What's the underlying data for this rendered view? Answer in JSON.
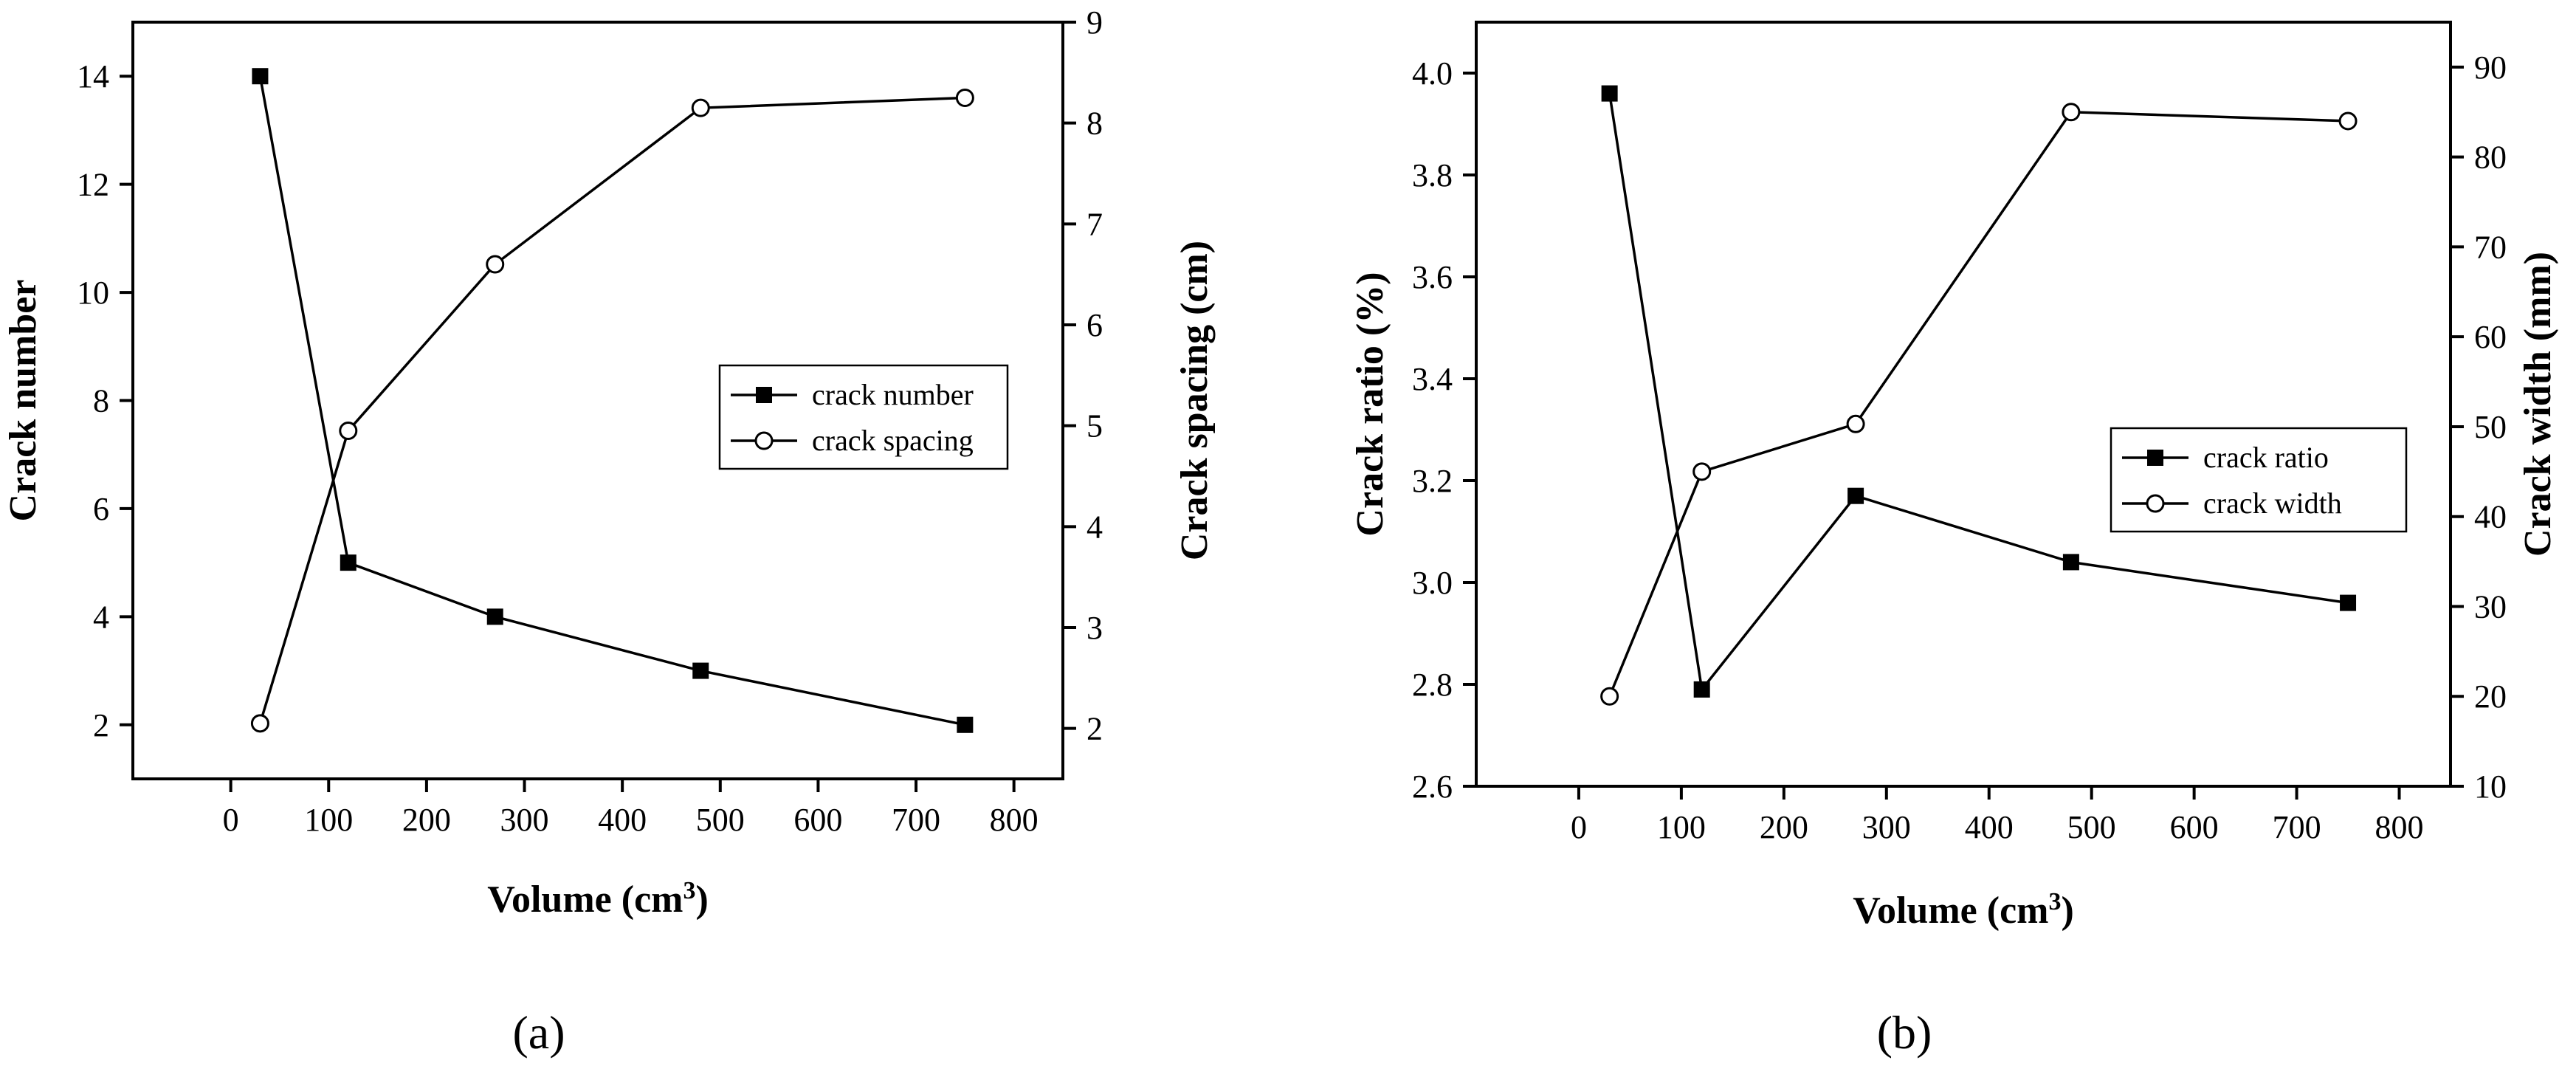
{
  "chart_data": [
    {
      "type": "line",
      "panel_label": "(a)",
      "xlabel": "Volume (cm",
      "xlabel_sup": "3",
      "xlabel_suffix": ")",
      "xlim": [
        -100,
        850
      ],
      "xticks": [
        0,
        100,
        200,
        300,
        400,
        500,
        600,
        700,
        800
      ],
      "x": [
        30,
        120,
        270,
        480,
        750
      ],
      "left_axis": {
        "label": "Crack number",
        "ylim": [
          1,
          15
        ],
        "ticks": [
          2,
          4,
          6,
          8,
          10,
          12,
          14
        ]
      },
      "right_axis": {
        "label": "Crack spacing (cm)",
        "ylim": [
          1.5,
          9
        ],
        "ticks": [
          2,
          3,
          4,
          5,
          6,
          7,
          8,
          9
        ]
      },
      "series": [
        {
          "name": "crack number",
          "axis": "left",
          "marker": "square",
          "values": [
            14,
            5,
            4,
            3,
            2
          ]
        },
        {
          "name": "crack spacing",
          "axis": "right",
          "marker": "circle",
          "values": [
            2.05,
            4.95,
            6.6,
            8.15,
            8.25
          ]
        }
      ],
      "legend_position": "right-middle",
      "grid": false
    },
    {
      "type": "line",
      "panel_label": "(b)",
      "xlabel": "Volume (cm",
      "xlabel_sup": "3",
      "xlabel_suffix": ")",
      "xlim": [
        -100,
        850
      ],
      "xticks": [
        0,
        100,
        200,
        300,
        400,
        500,
        600,
        700,
        800
      ],
      "x": [
        30,
        120,
        270,
        480,
        750
      ],
      "left_axis": {
        "label": "Crack ratio (%)",
        "ylim": [
          2.6,
          4.1
        ],
        "ticks": [
          2.6,
          2.8,
          3.0,
          3.2,
          3.4,
          3.6,
          3.8,
          4.0
        ],
        "tick_labels": [
          "2.6",
          "2.8",
          "3.0",
          "3.2",
          "3.4",
          "3.6",
          "3.8",
          "4.0"
        ]
      },
      "right_axis": {
        "label": "Crack width (mm)",
        "ylim": [
          10,
          95
        ],
        "ticks": [
          10,
          20,
          30,
          40,
          50,
          60,
          70,
          80,
          90
        ]
      },
      "series": [
        {
          "name": "crack ratio",
          "axis": "left",
          "marker": "square",
          "values": [
            3.96,
            2.79,
            3.17,
            3.04,
            2.96
          ]
        },
        {
          "name": "crack width",
          "axis": "right",
          "marker": "circle",
          "values": [
            20,
            45,
            50.3,
            85,
            84
          ]
        }
      ],
      "legend_position": "right-middle",
      "grid": false
    }
  ]
}
